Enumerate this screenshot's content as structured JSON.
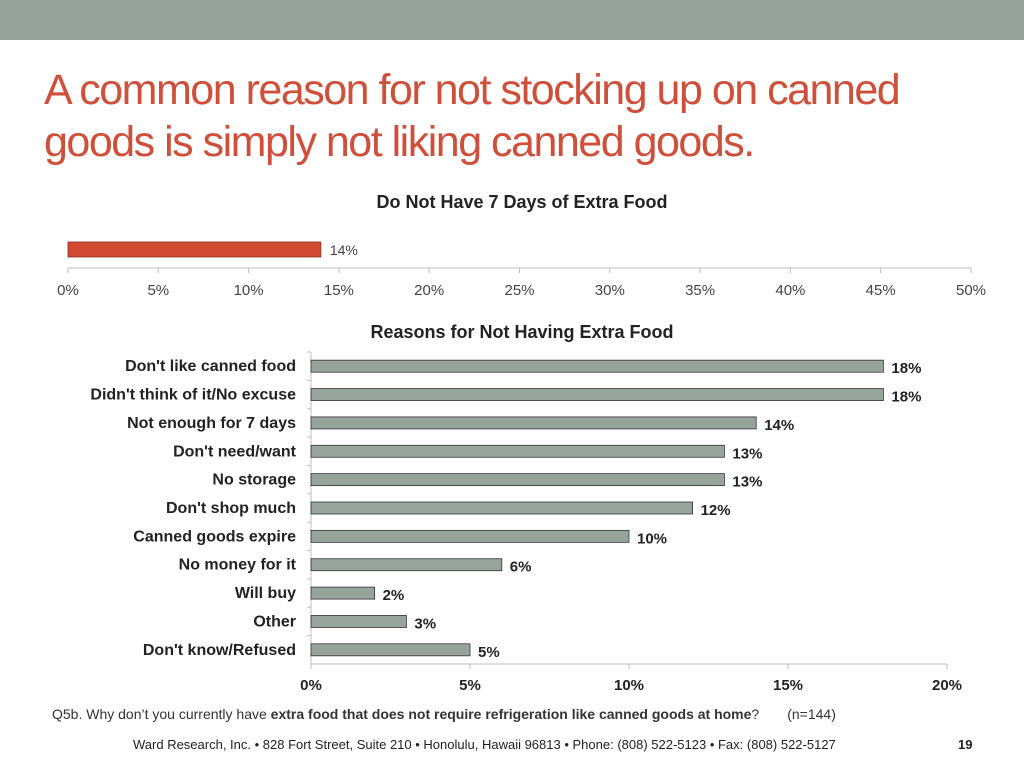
{
  "slide": {
    "title": "A common reason for not stocking up on canned goods is simply not liking canned goods.",
    "page_number": "19",
    "footer": "Ward Research, Inc. • 828 Fort Street, Suite 210 • Honolulu, Hawaii 96813 • Phone: (808) 522-5123 • Fax: (808) 522-5127",
    "footnote": {
      "prefix": "Q5b. Why don’t you currently have ",
      "emphasis": "extra food that does not require refrigeration like canned goods at home",
      "suffix": "?",
      "sample": "(n=144)"
    }
  },
  "colors": {
    "accent": "#cf4f3b",
    "topbar": "#96a39a",
    "bar_gray": "#97a49c",
    "bar_red": "#d24a32"
  },
  "chart_data": [
    {
      "type": "bar",
      "orientation": "horizontal",
      "title": "Do Not Have 7 Days of Extra Food",
      "categories": [
        ""
      ],
      "values": [
        14
      ],
      "value_labels": [
        "14%"
      ],
      "xlim": [
        0,
        50
      ],
      "ticks": [
        0,
        5,
        10,
        15,
        20,
        25,
        30,
        35,
        40,
        45,
        50
      ],
      "tick_labels": [
        "0%",
        "5%",
        "10%",
        "15%",
        "20%",
        "25%",
        "30%",
        "35%",
        "40%",
        "45%",
        "50%"
      ],
      "color": "#d24a32",
      "grid": false
    },
    {
      "type": "bar",
      "orientation": "horizontal",
      "title": "Reasons for Not Having Extra Food",
      "categories": [
        "Don't like canned food",
        "Didn't think of it/No excuse",
        "Not enough for 7 days",
        "Don't need/want",
        "No storage",
        "Don't shop much",
        "Canned goods expire",
        "No money for it",
        "Will buy",
        "Other",
        "Don't know/Refused"
      ],
      "values": [
        18,
        18,
        14,
        13,
        13,
        12,
        10,
        6,
        2,
        3,
        5
      ],
      "value_labels": [
        "18%",
        "18%",
        "14%",
        "13%",
        "13%",
        "12%",
        "10%",
        "6%",
        "2%",
        "3%",
        "5%"
      ],
      "xlim": [
        0,
        20
      ],
      "ticks": [
        0,
        5,
        10,
        15,
        20
      ],
      "tick_labels": [
        "0%",
        "5%",
        "10%",
        "15%",
        "20%"
      ],
      "color": "#97a49c",
      "grid": false
    }
  ]
}
